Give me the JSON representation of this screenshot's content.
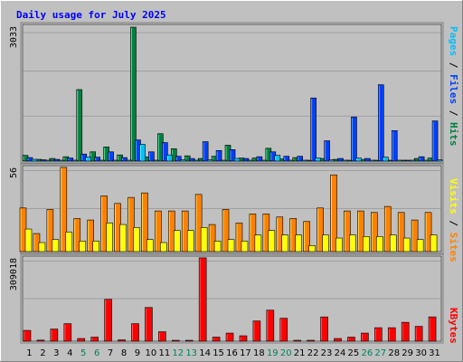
{
  "chart_data": [
    {
      "type": "bar",
      "title": "Daily usage for July 2025",
      "categories": [
        "1",
        "2",
        "3",
        "4",
        "5",
        "6",
        "7",
        "8",
        "9",
        "10",
        "11",
        "12",
        "13",
        "14",
        "15",
        "16",
        "17",
        "18",
        "19",
        "20",
        "21",
        "22",
        "23",
        "24",
        "25",
        "26",
        "27",
        "28",
        "29",
        "30",
        "31"
      ],
      "weekend_days": [
        "5",
        "6",
        "12",
        "13",
        "19",
        "20",
        "26",
        "27"
      ],
      "ymax_label": "3033",
      "ylim": [
        0,
        3033
      ],
      "legend": [
        "Pages",
        "Files",
        "Hits"
      ],
      "series": [
        {
          "name": "Hits",
          "color": "#008040",
          "values": [
            130,
            40,
            60,
            100,
            1620,
            210,
            320,
            140,
            3033,
            95,
            620,
            280,
            120,
            60,
            110,
            360,
            70,
            70,
            290,
            50,
            80,
            10,
            60,
            40,
            20,
            40,
            10,
            20,
            10,
            60,
            70
          ]
        },
        {
          "name": "Files",
          "color": "#0040ff",
          "values": [
            80,
            30,
            40,
            70,
            160,
            90,
            210,
            80,
            480,
            210,
            420,
            110,
            60,
            440,
            240,
            260,
            60,
            100,
            210,
            110,
            110,
            1430,
            460,
            60,
            1000,
            60,
            1730,
            690,
            0,
            100,
            910
          ]
        },
        {
          "name": "Pages",
          "color": "#00c0ff",
          "values": [
            40,
            0,
            20,
            20,
            90,
            20,
            20,
            10,
            380,
            10,
            140,
            30,
            20,
            30,
            20,
            60,
            10,
            0,
            130,
            20,
            20,
            70,
            30,
            10,
            70,
            0,
            90,
            10,
            10,
            20,
            30
          ]
        }
      ]
    },
    {
      "type": "bar",
      "ymax_label": "56",
      "ylim": [
        0,
        56
      ],
      "legend": [
        "Visits",
        "Sites"
      ],
      "series": [
        {
          "name": "Sites",
          "color": "#ff8000",
          "values": [
            29,
            12,
            28,
            56,
            22,
            21,
            37,
            32,
            36,
            39,
            27,
            27,
            27,
            38,
            18,
            28,
            19,
            25,
            25,
            23,
            22,
            20,
            29,
            51,
            27,
            27,
            26,
            30,
            26,
            21,
            26
          ]
        },
        {
          "name": "Visits",
          "color": "#ffff00",
          "values": [
            15,
            6,
            8,
            13,
            7,
            7,
            19,
            18,
            16,
            8,
            6,
            14,
            14,
            16,
            7,
            8,
            7,
            11,
            14,
            11,
            11,
            4,
            11,
            9,
            11,
            10,
            10,
            11,
            9,
            8,
            11
          ]
        }
      ]
    },
    {
      "type": "bar",
      "ymax_label": "309018",
      "ylim": [
        0,
        309018
      ],
      "legend": [
        "KBytes"
      ],
      "series": [
        {
          "name": "KBytes",
          "color": "#ff0000",
          "values": [
            40000,
            4000,
            45000,
            65000,
            10000,
            15000,
            155000,
            5000,
            65000,
            125000,
            35000,
            2000,
            2000,
            309018,
            15000,
            30000,
            20000,
            75000,
            115000,
            85000,
            2000,
            2000,
            90000,
            10000,
            15000,
            30000,
            50000,
            50000,
            70000,
            55000,
            90000
          ]
        }
      ]
    }
  ]
}
